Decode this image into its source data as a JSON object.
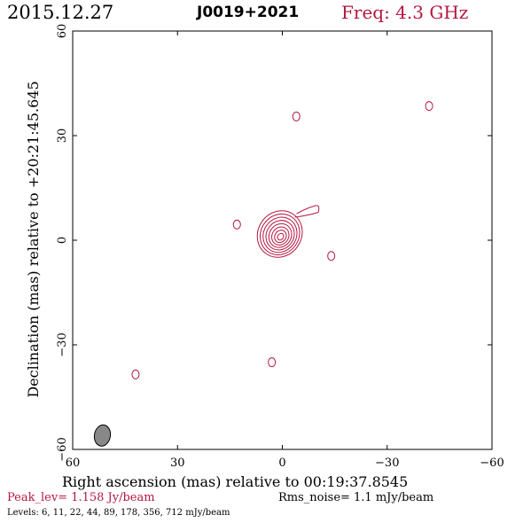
{
  "header": {
    "date": "2015.12.27",
    "source": "J0019+2021",
    "freq": "Freq: 4.3 GHz"
  },
  "footer": {
    "peak": "Peak_lev=  1.158 Jy/beam",
    "rms": "Rms_noise=  1.1 mJy/beam",
    "levels": "Levels:   6,  11,  22,  44,  89, 178, 356, 712 mJy/beam"
  },
  "colors": {
    "contour": "#b5173f",
    "beam": "#888888"
  },
  "chart_data": {
    "type": "contour",
    "xlabel": "Right ascension (mas) relative to 00:19:37.8545",
    "ylabel": "Declination (mas) relative to +20:21:45.645",
    "xlim": [
      60,
      -60
    ],
    "ylim": [
      -60,
      60
    ],
    "xticks": [
      60,
      30,
      0,
      -30,
      -60
    ],
    "yticks": [
      -60,
      -30,
      0,
      30,
      60
    ],
    "xtick_labels": [
      "60",
      "30",
      "0",
      "−30",
      "−60"
    ],
    "ytick_labels": [
      "−60",
      "−30",
      "0",
      "30",
      "60"
    ],
    "levels_mJy": [
      6,
      11,
      22,
      44,
      89,
      178,
      356,
      712
    ],
    "core": {
      "x": 0.5,
      "y": 1.0
    },
    "jet_tip": {
      "x": -9.5,
      "y": 9.0
    },
    "isolated_islands": [
      {
        "x": -4,
        "y": 35.5
      },
      {
        "x": 13,
        "y": 4.5
      },
      {
        "x": -14,
        "y": -4.5
      },
      {
        "x": 3,
        "y": -35
      },
      {
        "x": 42,
        "y": -38.5
      },
      {
        "x": -42,
        "y": 38.5
      }
    ],
    "beam": {
      "x": 51.5,
      "y": -56
    }
  }
}
